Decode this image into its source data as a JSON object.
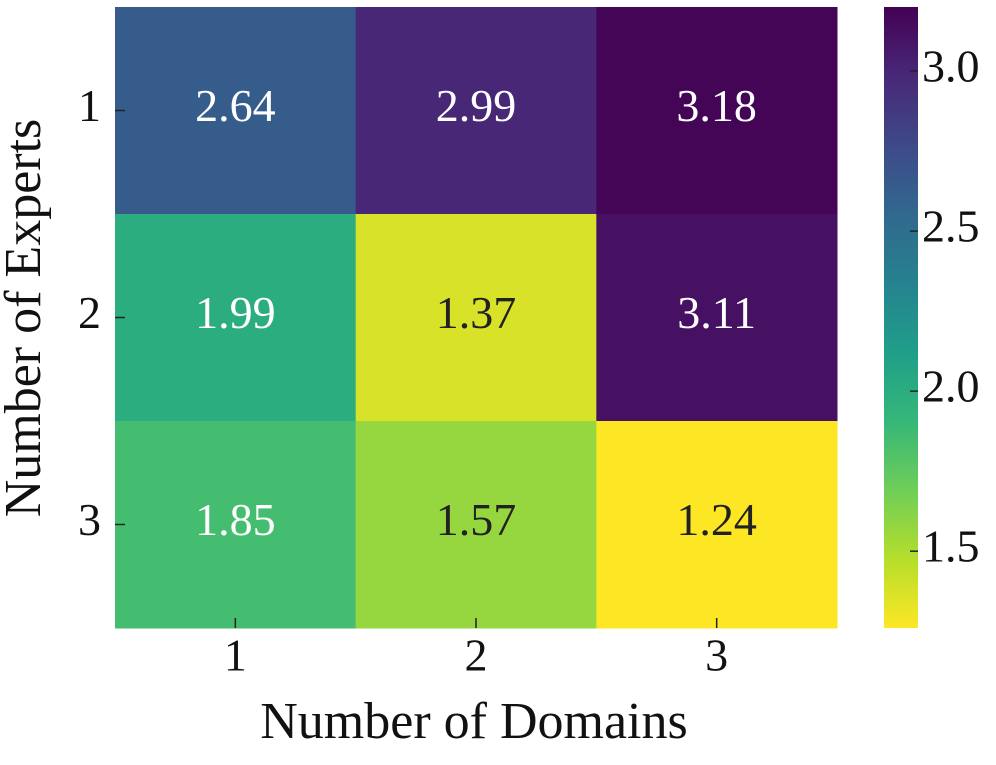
{
  "chart_data": {
    "type": "heatmap",
    "x_label": "Number of Domains",
    "y_label": "Number of Experts",
    "x_categories": [
      "1",
      "2",
      "3"
    ],
    "y_categories": [
      "1",
      "2",
      "3"
    ],
    "values": [
      [
        2.64,
        2.99,
        3.18
      ],
      [
        1.99,
        1.37,
        3.11
      ],
      [
        1.85,
        1.57,
        1.24
      ]
    ],
    "clim": [
      1.26,
      3.2
    ],
    "cticks": [
      1.5,
      {
        "value": 2,
        "label": "2.0"
      },
      2.5,
      {
        "value": 3,
        "label": "3.0"
      }
    ],
    "colorscale": [
      "#fde725",
      "#b5de2b",
      "#6ece58",
      "#35b779",
      "#1f9e89",
      "#26828e",
      "#31688e",
      "#3e4989",
      "#482878",
      "#440154"
    ]
  }
}
